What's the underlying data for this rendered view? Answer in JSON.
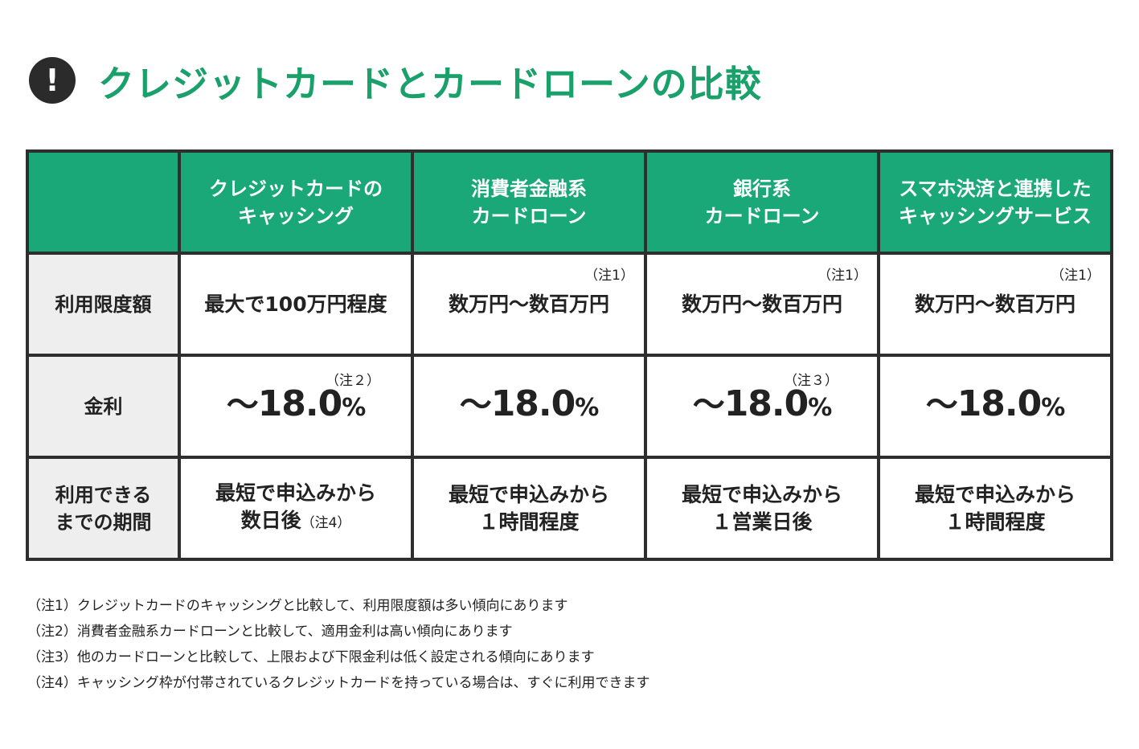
{
  "title": "クレジットカードとカードローンの比較",
  "alert_icon": "!",
  "columns": [
    {
      "line1": "クレジットカードの",
      "line2": "キャッシング"
    },
    {
      "line1": "消費者金融系",
      "line2": "カードローン"
    },
    {
      "line1": "銀行系",
      "line2": "カードローン"
    },
    {
      "line1": "スマホ決済と連携した",
      "line2": "キャッシングサービス"
    }
  ],
  "rows": {
    "limit": {
      "label": "利用限度額",
      "cells": [
        {
          "text": "最大で100万円程度",
          "note": ""
        },
        {
          "text": "数万円〜数百万円",
          "note": "（注1）"
        },
        {
          "text": "数万円〜数百万円",
          "note": "（注1）"
        },
        {
          "text": "数万円〜数百万円",
          "note": "（注1）"
        }
      ]
    },
    "rate": {
      "label": "金利",
      "tilde": "〜",
      "pct": "%",
      "cells": [
        {
          "value": "18.0",
          "note": "（注２）"
        },
        {
          "value": "18.0",
          "note": ""
        },
        {
          "value": "18.0",
          "note": "（注３）"
        },
        {
          "value": "18.0",
          "note": ""
        }
      ]
    },
    "period": {
      "label_line1": "利用できる",
      "label_line2": "までの期間",
      "cells": [
        {
          "line1": "最短で申込みから",
          "line2": "数日後",
          "note": "（注4）"
        },
        {
          "line1": "最短で申込みから",
          "line2": "１時間程度",
          "note": ""
        },
        {
          "line1": "最短で申込みから",
          "line2": "１営業日後",
          "note": ""
        },
        {
          "line1": "最短で申込みから",
          "line2": "１時間程度",
          "note": ""
        }
      ]
    }
  },
  "footnotes": [
    "（注1）クレジットカードのキャッシングと比較して、利用限度額は多い傾向にあります",
    "（注2）消費者金融系カードローンと比較して、適用金利は高い傾向にあります",
    "（注3）他のカードローンと比較して、上限および下限金利は低く設定される傾向にあります",
    "（注4）キャッシング枠が付帯されているクレジットカードを持っている場合は、すぐに利用できます"
  ],
  "colors": {
    "accent": "#1aa06a",
    "header_bg": "#1aa878",
    "rowhead_bg": "#eeeeee",
    "border": "#2e2e2e"
  }
}
